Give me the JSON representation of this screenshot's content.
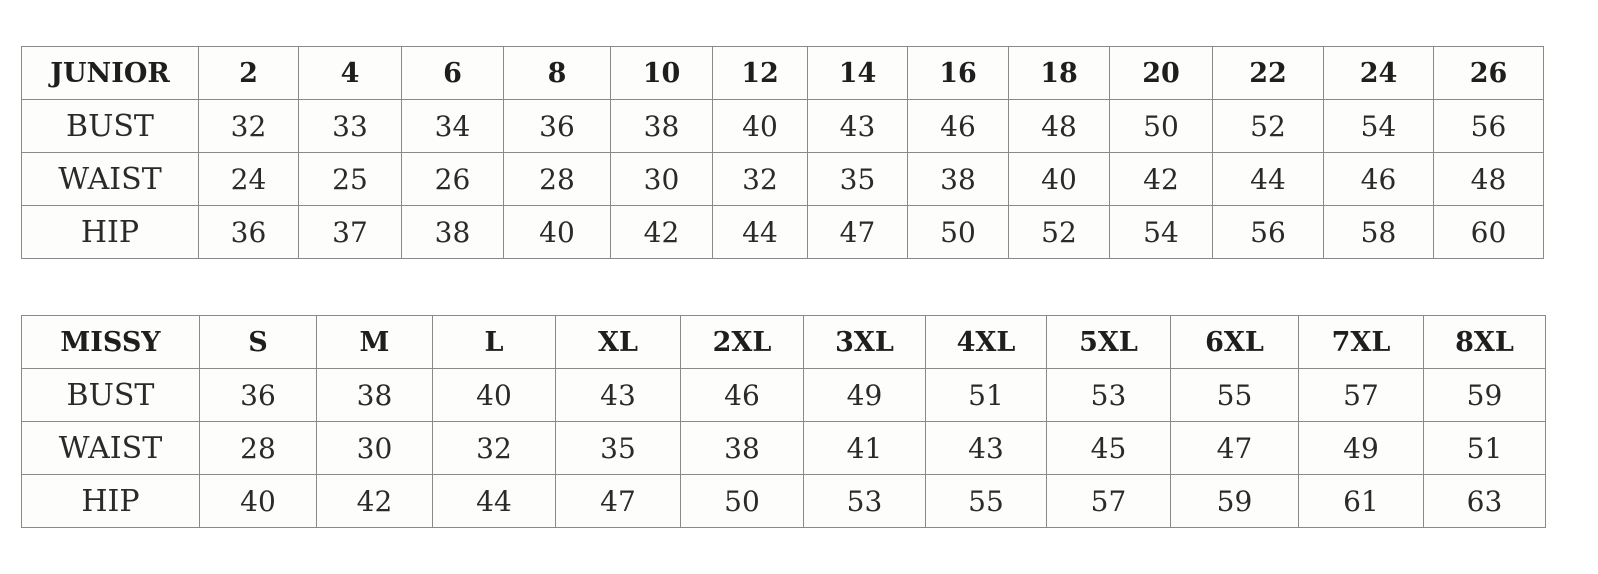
{
  "tables": [
    {
      "id": "junior",
      "header": [
        "JUNIOR",
        "2",
        "4",
        "6",
        "8",
        "10",
        "12",
        "14",
        "16",
        "18",
        "20",
        "22",
        "24",
        "26"
      ],
      "rows": [
        [
          "BUST",
          "32",
          "33",
          "34",
          "36",
          "38",
          "40",
          "43",
          "46",
          "48",
          "50",
          "52",
          "54",
          "56"
        ],
        [
          "WAIST",
          "24",
          "25",
          "26",
          "28",
          "30",
          "32",
          "35",
          "38",
          "40",
          "42",
          "44",
          "46",
          "48"
        ],
        [
          "HIP",
          "36",
          "37",
          "38",
          "40",
          "42",
          "44",
          "47",
          "50",
          "52",
          "54",
          "56",
          "58",
          "60"
        ]
      ]
    },
    {
      "id": "missy",
      "header": [
        "MISSY",
        "S",
        "M",
        "L",
        "XL",
        "2XL",
        "3XL",
        "4XL",
        "5XL",
        "6XL",
        "7XL",
        "8XL"
      ],
      "rows": [
        [
          "BUST",
          "36",
          "38",
          "40",
          "43",
          "46",
          "49",
          "51",
          "53",
          "55",
          "57",
          "59"
        ],
        [
          "WAIST",
          "28",
          "30",
          "32",
          "35",
          "38",
          "41",
          "43",
          "45",
          "47",
          "49",
          "51"
        ],
        [
          "HIP",
          "40",
          "42",
          "44",
          "47",
          "50",
          "53",
          "55",
          "57",
          "59",
          "61",
          "63"
        ]
      ]
    }
  ]
}
